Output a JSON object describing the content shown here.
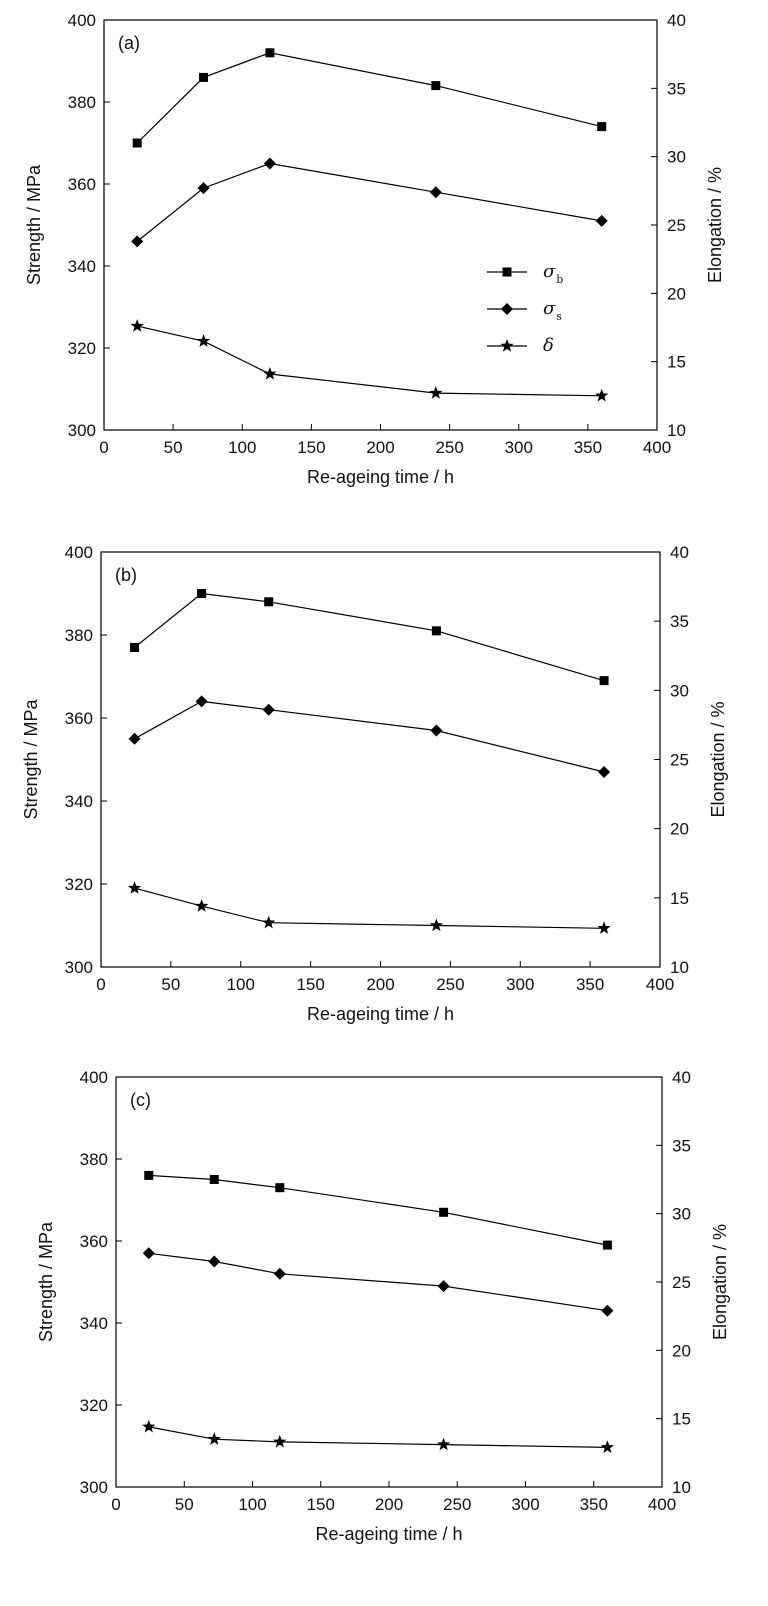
{
  "chart_data": [
    {
      "type": "line",
      "panel_label": "(a)",
      "xlabel": "Re-ageing time / h",
      "ylabel": "Strength / MPa",
      "y2label": "Elongation / %",
      "xlim": [
        0,
        400
      ],
      "ylim": [
        300,
        400
      ],
      "y2lim": [
        10,
        40
      ],
      "xticks": [
        "0",
        "50",
        "100",
        "150",
        "200",
        "250",
        "300",
        "350",
        "400"
      ],
      "yticks": [
        "300",
        "320",
        "340",
        "360",
        "380",
        "400"
      ],
      "y2ticks": [
        "10",
        "15",
        "20",
        "25",
        "30",
        "35",
        "40"
      ],
      "legend_position": "center-right",
      "x": [
        24,
        72,
        120,
        240,
        360
      ],
      "series": [
        {
          "name": "σ",
          "sub": "b",
          "marker": "square",
          "axis": "left",
          "values": [
            370,
            386,
            392,
            384,
            374
          ]
        },
        {
          "name": "σ",
          "sub": "s",
          "marker": "diamond",
          "axis": "left",
          "values": [
            346,
            359,
            365,
            358,
            351
          ]
        },
        {
          "name": "δ",
          "sub": "",
          "marker": "star",
          "axis": "right",
          "values": [
            17.6,
            16.5,
            14.1,
            12.7,
            12.5
          ]
        }
      ]
    },
    {
      "type": "line",
      "panel_label": "(b)",
      "xlabel": "Re-ageing time / h",
      "ylabel": "Strength / MPa",
      "y2label": "Elongation / %",
      "xlim": [
        0,
        400
      ],
      "ylim": [
        300,
        400
      ],
      "y2lim": [
        10,
        40
      ],
      "xticks": [
        "0",
        "50",
        "100",
        "150",
        "200",
        "250",
        "300",
        "350",
        "400"
      ],
      "yticks": [
        "300",
        "320",
        "340",
        "360",
        "380",
        "400"
      ],
      "y2ticks": [
        "10",
        "15",
        "20",
        "25",
        "30",
        "35",
        "40"
      ],
      "x": [
        24,
        72,
        120,
        240,
        360
      ],
      "series": [
        {
          "marker": "square",
          "axis": "left",
          "values": [
            377,
            390,
            388,
            381,
            369
          ]
        },
        {
          "marker": "diamond",
          "axis": "left",
          "values": [
            355,
            364,
            362,
            357,
            347
          ]
        },
        {
          "marker": "star",
          "axis": "right",
          "values": [
            15.7,
            14.4,
            13.2,
            13.0,
            12.8
          ]
        }
      ]
    },
    {
      "type": "line",
      "panel_label": "(c)",
      "xlabel": "Re-ageing time / h",
      "ylabel": "Strength / MPa",
      "y2label": "Elongation / %",
      "xlim": [
        0,
        400
      ],
      "ylim": [
        300,
        400
      ],
      "y2lim": [
        10,
        40
      ],
      "xticks": [
        "0",
        "50",
        "100",
        "150",
        "200",
        "250",
        "300",
        "350",
        "400"
      ],
      "yticks": [
        "300",
        "320",
        "340",
        "360",
        "380",
        "400"
      ],
      "y2ticks": [
        "10",
        "15",
        "20",
        "25",
        "30",
        "35",
        "40"
      ],
      "x": [
        24,
        72,
        120,
        240,
        360
      ],
      "series": [
        {
          "marker": "square",
          "axis": "left",
          "values": [
            376,
            375,
            373,
            367,
            359
          ]
        },
        {
          "marker": "diamond",
          "axis": "left",
          "values": [
            357,
            355,
            352,
            349,
            343
          ]
        },
        {
          "marker": "star",
          "axis": "right",
          "values": [
            14.4,
            13.5,
            13.3,
            13.1,
            12.9
          ]
        }
      ]
    }
  ]
}
